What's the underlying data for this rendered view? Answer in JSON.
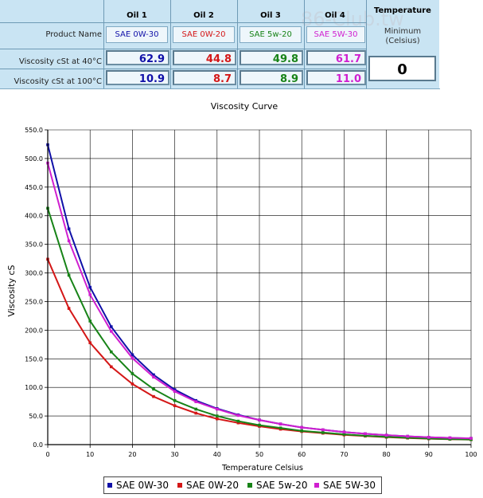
{
  "panel": {
    "watermark": "86-Club.tw",
    "oils": [
      {
        "header": "Oil 1",
        "product_name": "SAE 0W-30",
        "visc_40": "62.9",
        "visc_100": "10.9",
        "color": "#1010a8"
      },
      {
        "header": "Oil 2",
        "product_name": "SAE 0W-20",
        "visc_40": "44.8",
        "visc_100": "8.7",
        "color": "#d41717"
      },
      {
        "header": "Oil 3",
        "product_name": "SAE 5w-20",
        "visc_40": "49.8",
        "visc_100": "8.9",
        "color": "#178317"
      },
      {
        "header": "Oil 4",
        "product_name": "SAE 5W-30",
        "visc_40": "61.7",
        "visc_100": "11.0",
        "color": "#d01fd0"
      }
    ],
    "row_labels": {
      "product_name": "Product Name",
      "visc_40": "Viscosity cSt at 40°C",
      "visc_100": "Viscosity cSt at 100°C"
    },
    "temperature": {
      "header": "Temperature",
      "min_label": "Minimum",
      "unit_label": "(Celsius)",
      "value": "0"
    }
  },
  "chart_data": {
    "type": "line",
    "title": "Viscosity Curve",
    "xlabel": "Temperature Celsius",
    "ylabel": "Viscosity cS",
    "xlim": [
      0,
      100
    ],
    "ylim": [
      0,
      550
    ],
    "x_ticks": [
      "0",
      "10",
      "20",
      "30",
      "40",
      "50",
      "60",
      "70",
      "80",
      "90",
      "100"
    ],
    "y_ticks": [
      "0.0",
      "50.0",
      "100.0",
      "150.0",
      "200.0",
      "250.0",
      "300.0",
      "350.0",
      "400.0",
      "450.0",
      "500.0",
      "550.0"
    ],
    "grid": true,
    "legend_position": "bottom",
    "x": [
      0,
      5,
      10,
      15,
      20,
      25,
      30,
      35,
      40,
      45,
      50,
      55,
      60,
      65,
      70,
      75,
      80,
      85,
      90,
      95,
      100
    ],
    "series": [
      {
        "name": "SAE 0W-30",
        "color": "#1010a8",
        "values": [
          524,
          377,
          275,
          206,
          157,
          122,
          96,
          77,
          63,
          52,
          43,
          36,
          30,
          26,
          22,
          19,
          16.5,
          14.5,
          12.8,
          11.7,
          10.9
        ]
      },
      {
        "name": "SAE 0W-20",
        "color": "#d41717",
        "values": [
          324,
          238,
          178,
          136,
          106,
          84,
          68,
          55,
          45,
          38,
          32,
          27,
          23,
          20,
          17,
          15,
          13,
          11.5,
          10.3,
          9.4,
          8.7
        ]
      },
      {
        "name": "SAE 5w-20",
        "color": "#178317",
        "values": [
          413,
          296,
          216,
          162,
          124,
          97,
          77,
          62,
          50,
          41,
          34,
          29,
          24,
          21,
          18,
          15.5,
          13.5,
          12,
          10.6,
          9.6,
          8.9
        ]
      },
      {
        "name": "SAE 5W-30",
        "color": "#d01fd0",
        "values": [
          492,
          356,
          262,
          198,
          151,
          118,
          93,
          75,
          62,
          51,
          43,
          36,
          30,
          26,
          22,
          19,
          16.5,
          14.5,
          12.8,
          11.8,
          11.0
        ]
      }
    ]
  }
}
